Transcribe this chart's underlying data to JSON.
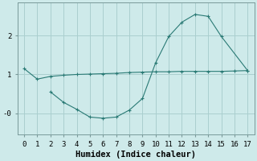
{
  "line1_x": [
    0,
    1,
    2,
    3,
    4,
    5,
    6,
    7,
    8,
    9,
    10,
    11,
    12,
    13,
    14,
    15,
    16,
    17
  ],
  "line1_y": [
    1.15,
    0.88,
    0.95,
    0.98,
    1.0,
    1.01,
    1.02,
    1.03,
    1.05,
    1.06,
    1.07,
    1.07,
    1.08,
    1.08,
    1.08,
    1.08,
    1.09,
    1.1
  ],
  "line2_x": [
    2,
    3,
    4,
    5,
    6,
    7,
    8,
    9,
    10,
    11,
    12,
    13,
    14,
    15,
    17
  ],
  "line2_y": [
    0.55,
    0.28,
    0.1,
    -0.1,
    -0.13,
    -0.1,
    0.08,
    0.38,
    1.3,
    1.98,
    2.35,
    2.55,
    2.5,
    1.98,
    1.1
  ],
  "line_color": "#2a7a75",
  "bg_color": "#ceeaea",
  "grid_color": "#aacfcf",
  "xlabel": "Humidex (Indice chaleur)",
  "xticks": [
    0,
    1,
    2,
    3,
    4,
    5,
    6,
    7,
    8,
    9,
    10,
    11,
    12,
    13,
    14,
    15,
    16,
    17
  ],
  "ytick_vals": [
    2.0,
    1.0,
    0.0
  ],
  "ytick_labels": [
    "2",
    "1",
    "-0"
  ],
  "xlim": [
    -0.5,
    17.5
  ],
  "ylim": [
    -0.55,
    2.85
  ],
  "xlabel_fontsize": 7.5,
  "tick_fontsize": 6.5
}
